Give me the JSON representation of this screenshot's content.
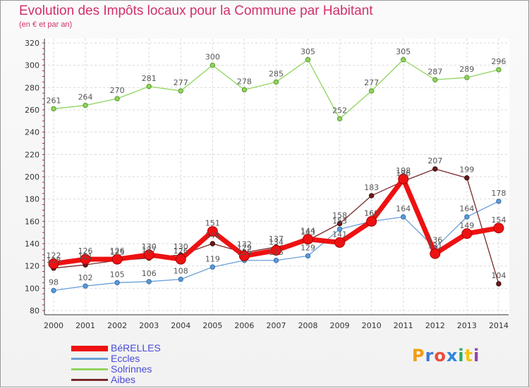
{
  "header": {
    "title": "Evolution des Impôts locaux pour la Commune par Habitant",
    "subtitle": "(en € et par an)"
  },
  "logo": {
    "letters": [
      "P",
      "r",
      "o",
      "x",
      "i",
      "t",
      "i"
    ],
    "colors": [
      "#f39c12",
      "#3a7bd5",
      "#e74c3c",
      "#2e86de",
      "#27ae60",
      "#f1c40f",
      "#8e44ad"
    ]
  },
  "chart_data": {
    "type": "line",
    "title": "Evolution des Impôts locaux pour la Commune par Habitant",
    "subtitle": "(en € et par an)",
    "xlabel": "",
    "ylabel": "",
    "x": [
      2000,
      2001,
      2002,
      2003,
      2004,
      2005,
      2006,
      2007,
      2008,
      2009,
      2010,
      2011,
      2012,
      2013,
      2014
    ],
    "ylim": [
      80,
      320
    ],
    "yticks": [
      80,
      100,
      120,
      140,
      160,
      180,
      200,
      220,
      240,
      260,
      280,
      300,
      320
    ],
    "grid": true,
    "legend_position": "bottom-left",
    "series": [
      {
        "name": "BéRELLES",
        "color": "#ee1111",
        "values": [
          122,
          126,
          126,
          130,
          126,
          151,
          129,
          134,
          144,
          141,
          160,
          198,
          131,
          149,
          154
        ],
        "labels": [
          "122",
          "126",
          "126",
          "130",
          "126",
          "151",
          "129",
          "134",
          "144",
          "141",
          "160",
          "198",
          "131",
          "149",
          "154"
        ]
      },
      {
        "name": "Eccles",
        "color": "#6a9fd8",
        "values": [
          98,
          102,
          105,
          106,
          108,
          119,
          125,
          125,
          129,
          153,
          160,
          164,
          136,
          164,
          178
        ],
        "labels": [
          "98",
          "102",
          "105",
          "106",
          "108",
          "119",
          "125",
          "125",
          "129",
          "153",
          "160",
          "164",
          "136",
          "164",
          "178"
        ]
      },
      {
        "name": "Solrinnes",
        "color": "#8fd45e",
        "values": [
          261,
          264,
          270,
          281,
          277,
          300,
          278,
          285,
          305,
          252,
          277,
          305,
          287,
          289,
          296
        ],
        "labels": [
          "261",
          "264",
          "270",
          "281",
          "277",
          "300",
          "278",
          "285",
          "305",
          "252",
          "277",
          "305",
          "287",
          "289",
          "296"
        ]
      },
      {
        "name": "Aibes",
        "color": "#7a2a2a",
        "values": [
          118,
          121,
          125,
          127,
          130,
          140,
          132,
          137,
          143,
          158,
          183,
          196,
          207,
          199,
          104
        ],
        "labels": [
          "118",
          "121",
          "125",
          "127",
          "130",
          "140",
          "132",
          "137",
          "143",
          "158",
          "183",
          "196",
          "207",
          "199",
          "104"
        ]
      }
    ]
  }
}
